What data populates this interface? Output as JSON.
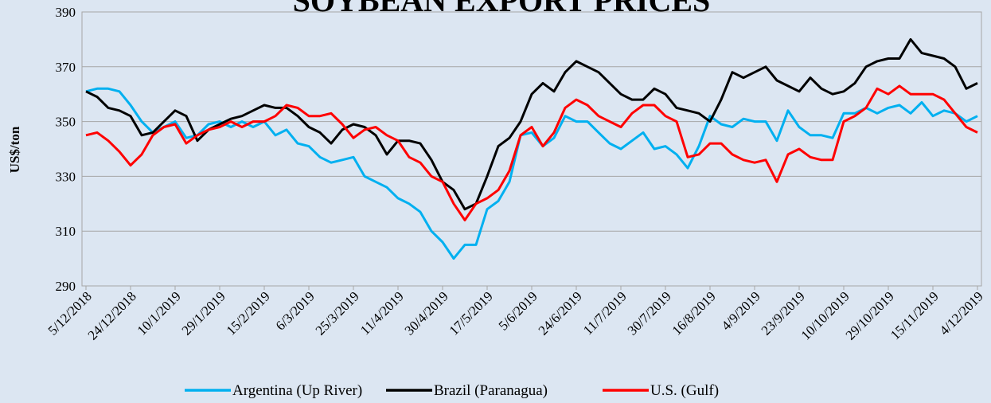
{
  "chart_data": {
    "type": "line",
    "title": "SOYBEAN EXPORT PRICES",
    "y_label": "US$/ton",
    "categories": [
      "5/12/2018",
      null,
      null,
      null,
      "24/12/2018",
      null,
      null,
      null,
      "10/1/2019",
      null,
      null,
      null,
      "29/1/2019",
      null,
      null,
      null,
      "15/2/2019",
      null,
      null,
      null,
      "6/3/2019",
      null,
      null,
      null,
      "25/3/2019",
      null,
      null,
      null,
      "11/4/2019",
      null,
      null,
      null,
      "30/4/2019",
      null,
      null,
      null,
      "17/5/2019",
      null,
      null,
      null,
      "5/6/2019",
      null,
      null,
      null,
      "24/6/2019",
      null,
      null,
      null,
      "11/7/2019",
      null,
      null,
      null,
      "30/7/2019",
      null,
      null,
      null,
      "16/8/2019",
      null,
      null,
      null,
      "4/9/2019",
      null,
      null,
      null,
      "23/9/2019",
      null,
      null,
      null,
      "10/10/2019",
      null,
      null,
      null,
      "29/10/2019",
      null,
      null,
      null,
      "15/11/2019",
      null,
      null,
      null,
      "4/12/2019"
    ],
    "series": [
      {
        "name": "Argentina (Up River)",
        "color": "#00b0f0",
        "values": [
          361,
          362,
          362,
          361,
          356,
          350,
          346,
          348,
          350,
          344,
          345,
          349,
          350,
          348,
          350,
          348,
          350,
          345,
          347,
          342,
          341,
          337,
          335,
          336,
          337,
          330,
          328,
          326,
          322,
          320,
          317,
          310,
          306,
          300,
          305,
          305,
          318,
          321,
          328,
          345,
          346,
          341,
          344,
          352,
          350,
          350,
          346,
          342,
          340,
          343,
          346,
          340,
          341,
          338,
          333,
          341,
          352,
          349,
          348,
          351,
          350,
          350,
          343,
          354,
          348,
          345,
          345,
          344,
          353,
          353,
          355,
          353,
          355,
          356,
          353,
          357,
          352,
          354,
          353,
          350,
          352
        ]
      },
      {
        "name": "Brazil (Paranagua)",
        "color": "#000000",
        "values": [
          361,
          359,
          355,
          354,
          352,
          345,
          346,
          350,
          354,
          352,
          343,
          347,
          349,
          351,
          352,
          354,
          356,
          355,
          355,
          352,
          348,
          346,
          342,
          347,
          349,
          348,
          345,
          338,
          343,
          343,
          342,
          336,
          328,
          325,
          318,
          320,
          330,
          341,
          344,
          350,
          360,
          364,
          361,
          368,
          372,
          370,
          368,
          364,
          360,
          358,
          358,
          362,
          360,
          355,
          354,
          353,
          350,
          358,
          368,
          366,
          368,
          370,
          365,
          363,
          361,
          366,
          362,
          360,
          361,
          364,
          370,
          372,
          373,
          373,
          380,
          375,
          374,
          373,
          370,
          362,
          364
        ]
      },
      {
        "name": "U.S. (Gulf)",
        "color": "#ff0000",
        "values": [
          345,
          346,
          343,
          339,
          334,
          338,
          345,
          348,
          349,
          342,
          345,
          347,
          348,
          350,
          348,
          350,
          350,
          352,
          356,
          355,
          352,
          352,
          353,
          349,
          344,
          347,
          348,
          345,
          343,
          337,
          335,
          330,
          328,
          320,
          314,
          320,
          322,
          325,
          332,
          345,
          348,
          341,
          346,
          355,
          358,
          356,
          352,
          350,
          348,
          353,
          356,
          356,
          352,
          350,
          337,
          338,
          342,
          342,
          338,
          336,
          335,
          336,
          328,
          338,
          340,
          337,
          336,
          336,
          350,
          352,
          355,
          362,
          360,
          363,
          360,
          360,
          360,
          358,
          353,
          348,
          346
        ]
      }
    ],
    "ylim": [
      290,
      390
    ],
    "yticks": [
      290,
      310,
      330,
      350,
      370,
      390
    ],
    "grid": true
  }
}
